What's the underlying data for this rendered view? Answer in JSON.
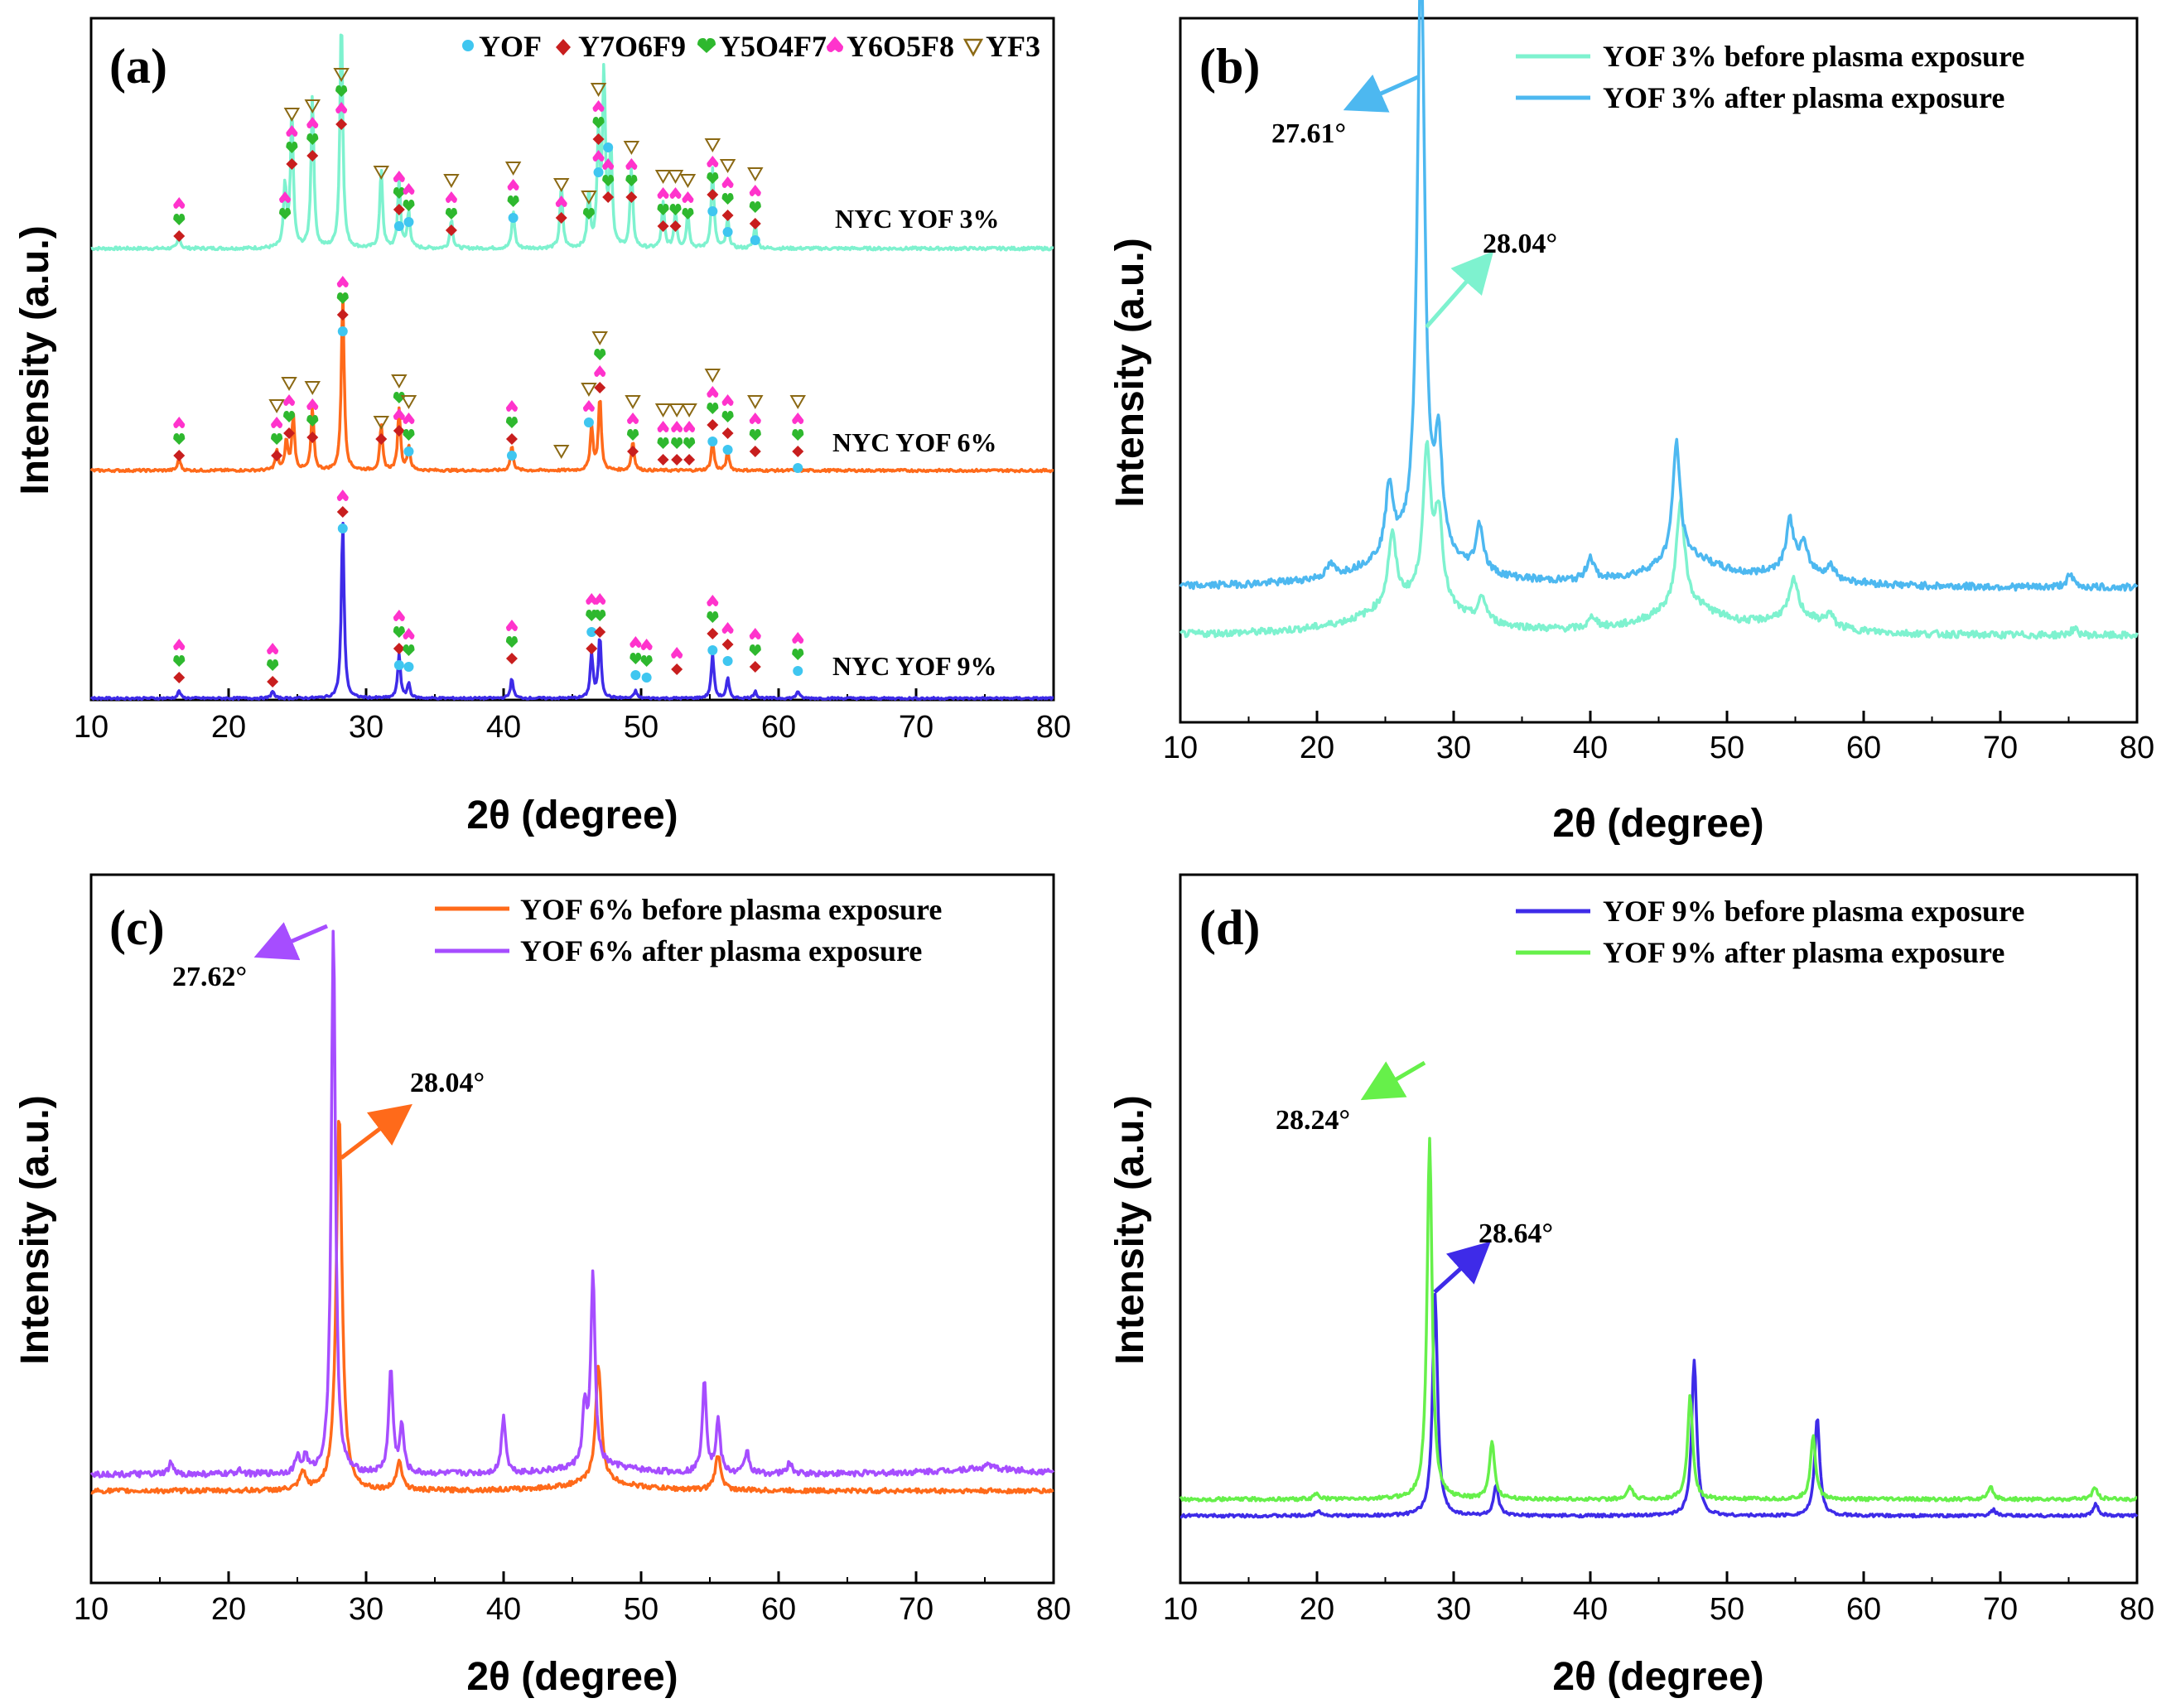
{
  "axis_common": {
    "xlabel": "2θ (degree)",
    "ylabel": "Intensity (a.u.)",
    "xlim": [
      10,
      80
    ],
    "xticks": [
      "10",
      "20",
      "30",
      "40",
      "50",
      "60",
      "70",
      "80"
    ]
  },
  "colors": {
    "yof3": "#7EF2CF",
    "yof3_after": "#4DB8F0",
    "yof6": "#FF6A1A",
    "yof6_after": "#A64DFF",
    "yof9": "#3E2BE8",
    "yof9_after": "#66F04A",
    "marker_yof": "#3FC6F0",
    "marker_y7": "#C81E1E",
    "marker_y5": "#2EB82E",
    "marker_y6": "#FF33CC",
    "marker_yf3": "#8B6914"
  },
  "chart_data": [
    {
      "panel": "(a)",
      "type": "line",
      "title": "",
      "xlabel": "2θ (degree)",
      "ylabel": "Intensity (a.u.)",
      "xlim": [
        10,
        80
      ],
      "legend": [
        {
          "symbol": "●",
          "text": "YOF",
          "color": "#3FC6F0"
        },
        {
          "symbol": "◆",
          "text": "Y7O6F9",
          "color": "#C81E1E"
        },
        {
          "symbol": "♥",
          "text": "Y5O4F7",
          "color": "#2EB82E"
        },
        {
          "symbol": "♠",
          "text": "Y6O5F8",
          "color": "#FF33CC"
        },
        {
          "symbol": "▽",
          "text": "YF3",
          "color": "#8B6914"
        }
      ],
      "series": [
        {
          "name": "NYC YOF 3%",
          "peaks": [
            [
              16.4,
              0.05
            ],
            [
              24.1,
              0.25
            ],
            [
              24.6,
              0.55
            ],
            [
              26.1,
              0.62
            ],
            [
              28.2,
              0.95
            ],
            [
              31.1,
              0.32
            ],
            [
              32.4,
              0.28
            ],
            [
              33.1,
              0.15
            ],
            [
              36.2,
              0.12
            ],
            [
              40.7,
              0.15
            ],
            [
              44.2,
              0.25
            ],
            [
              46.2,
              0.22
            ],
            [
              46.9,
              0.45
            ],
            [
              47.3,
              0.7
            ],
            [
              47.8,
              0.4
            ],
            [
              49.3,
              0.32
            ],
            [
              51.6,
              0.18
            ],
            [
              52.5,
              0.15
            ],
            [
              53.4,
              0.14
            ],
            [
              55.2,
              0.32
            ],
            [
              56.3,
              0.12
            ],
            [
              58.3,
              0.1
            ]
          ]
        },
        {
          "name": "NYC YOF 6%",
          "peaks": [
            [
              16.4,
              0.05
            ],
            [
              23.5,
              0.08
            ],
            [
              24.2,
              0.12
            ],
            [
              24.7,
              0.22
            ],
            [
              26.1,
              0.25
            ],
            [
              28.3,
              0.72
            ],
            [
              31.1,
              0.18
            ],
            [
              32.4,
              0.25
            ],
            [
              33.1,
              0.1
            ],
            [
              40.6,
              0.1
            ],
            [
              46.4,
              0.18
            ],
            [
              47.0,
              0.3
            ],
            [
              49.4,
              0.12
            ],
            [
              55.2,
              0.12
            ],
            [
              56.3,
              0.08
            ]
          ]
        },
        {
          "name": "NYC YOF 9%",
          "peaks": [
            [
              16.4,
              0.03
            ],
            [
              23.2,
              0.03
            ],
            [
              28.3,
              0.72
            ],
            [
              32.4,
              0.18
            ],
            [
              33.1,
              0.06
            ],
            [
              40.6,
              0.08
            ],
            [
              46.4,
              0.18
            ],
            [
              47.0,
              0.25
            ],
            [
              49.6,
              0.03
            ],
            [
              55.2,
              0.18
            ],
            [
              56.3,
              0.08
            ],
            [
              58.3,
              0.03
            ],
            [
              61.4,
              0.03
            ]
          ]
        }
      ]
    },
    {
      "panel": "(b)",
      "type": "line",
      "xlabel": "2θ (degree)",
      "ylabel": "Intensity (a.u.)",
      "xlim": [
        10,
        80
      ],
      "series": [
        {
          "name": "YOF 3% before plasma exposure",
          "peak_2theta": 28.04
        },
        {
          "name": "YOF 3% after plasma exposure",
          "peak_2theta": 27.61
        }
      ],
      "annotations": [
        "27.61°",
        "28.04°"
      ]
    },
    {
      "panel": "(c)",
      "type": "line",
      "xlabel": "2θ (degree)",
      "ylabel": "Intensity (a.u.)",
      "xlim": [
        10,
        80
      ],
      "series": [
        {
          "name": "YOF 6% before plasma exposure",
          "peak_2theta": 28.04
        },
        {
          "name": "YOF 6% after plasma exposure",
          "peak_2theta": 27.62
        }
      ],
      "annotations": [
        "27.62°",
        "28.04°"
      ]
    },
    {
      "panel": "(d)",
      "type": "line",
      "xlabel": "2θ (degree)",
      "ylabel": "Intensity (a.u.)",
      "xlim": [
        10,
        80
      ],
      "series": [
        {
          "name": "YOF 9% before plasma exposure",
          "peak_2theta": 28.64
        },
        {
          "name": "YOF 9% after plasma exposure",
          "peak_2theta": 28.24
        }
      ],
      "annotations": [
        "28.24°",
        "28.64°"
      ]
    }
  ],
  "text": {
    "panel_a": "(a)",
    "panel_b": "(b)",
    "panel_c": "(c)",
    "panel_d": "(d)",
    "legend_a_yof": "YOF",
    "legend_a_y7": "Y7O6F9",
    "legend_a_y5": "Y5O4F7",
    "legend_a_y6": "Y6O5F8",
    "legend_a_yf3": "YF3",
    "sample_3": "NYC YOF 3%",
    "sample_6": "NYC YOF 6%",
    "sample_9": "NYC YOF 9%",
    "b_before": "YOF 3% before plasma exposure",
    "b_after": "YOF 3% after plasma exposure",
    "b_anno1": "27.61°",
    "b_anno2": "28.04°",
    "c_before": "YOF 6% before plasma exposure",
    "c_after": "YOF 6% after plasma exposure",
    "c_anno1": "27.62°",
    "c_anno2": "28.04°",
    "d_before": "YOF 9% before plasma exposure",
    "d_after": "YOF 9% after plasma exposure",
    "d_anno1": "28.24°",
    "d_anno2": "28.64°"
  }
}
